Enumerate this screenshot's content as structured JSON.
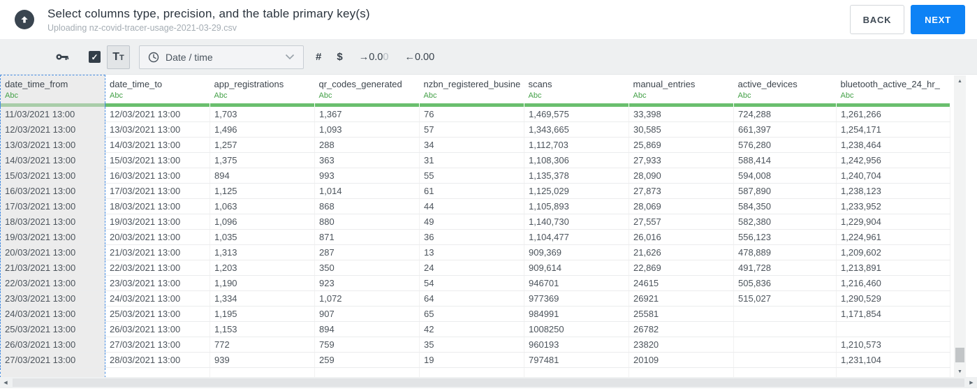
{
  "colors": {
    "accent_blue": "#0d82f5",
    "type_green": "#43a047",
    "selection_blue": "#4a8fe2",
    "selected_col_bg": "#ececec",
    "green_bar": "#6abf6e",
    "green_bar_selected": "#a9cda9"
  },
  "header": {
    "title": "Select columns type, precision, and the table primary key(s)",
    "subtitle": "Uploading nz-covid-tracer-usage-2021-03-29.csv",
    "back_label": "BACK",
    "next_label": "NEXT"
  },
  "toolbar": {
    "text_type_label": "Tt",
    "type_dropdown_value": "Date / time",
    "number_symbol": "#",
    "currency_symbol": "$",
    "precision_increase": {
      "main": "→0.0",
      "ghost": "0"
    },
    "precision_decrease": "←0.00"
  },
  "table": {
    "columns": [
      {
        "name": "date_time_from",
        "type": "Abc",
        "selected": true
      },
      {
        "name": "date_time_to",
        "type": "Abc"
      },
      {
        "name": "app_registrations",
        "type": "Abc"
      },
      {
        "name": "qr_codes_generated",
        "type": "Abc"
      },
      {
        "name": "nzbn_registered_busine",
        "type": "Abc"
      },
      {
        "name": "scans",
        "type": "Abc"
      },
      {
        "name": "manual_entries",
        "type": "Abc"
      },
      {
        "name": "active_devices",
        "type": "Abc"
      },
      {
        "name": "bluetooth_active_24_hr_",
        "type": "Abc"
      }
    ],
    "rows": [
      [
        "11/03/2021 13:00",
        "12/03/2021 13:00",
        "1,703",
        "1,367",
        "76",
        "1,469,575",
        "33,398",
        "724,288",
        "1,261,266"
      ],
      [
        "12/03/2021 13:00",
        "13/03/2021 13:00",
        "1,496",
        "1,093",
        "57",
        "1,343,665",
        "30,585",
        "661,397",
        "1,254,171"
      ],
      [
        "13/03/2021 13:00",
        "14/03/2021 13:00",
        "1,257",
        "288",
        "34",
        "1,112,703",
        "25,869",
        "576,280",
        "1,238,464"
      ],
      [
        "14/03/2021 13:00",
        "15/03/2021 13:00",
        "1,375",
        "363",
        "31",
        "1,108,306",
        "27,933",
        "588,414",
        "1,242,956"
      ],
      [
        "15/03/2021 13:00",
        "16/03/2021 13:00",
        "894",
        "993",
        "55",
        "1,135,378",
        "28,090",
        "594,008",
        "1,240,704"
      ],
      [
        "16/03/2021 13:00",
        "17/03/2021 13:00",
        "1,125",
        "1,014",
        "61",
        "1,125,029",
        "27,873",
        "587,890",
        "1,238,123"
      ],
      [
        "17/03/2021 13:00",
        "18/03/2021 13:00",
        "1,063",
        "868",
        "44",
        "1,105,893",
        "28,069",
        "584,350",
        "1,233,952"
      ],
      [
        "18/03/2021 13:00",
        "19/03/2021 13:00",
        "1,096",
        "880",
        "49",
        "1,140,730",
        "27,557",
        "582,380",
        "1,229,904"
      ],
      [
        "19/03/2021 13:00",
        "20/03/2021 13:00",
        "1,035",
        "871",
        "36",
        "1,104,477",
        "26,016",
        "556,123",
        "1,224,961"
      ],
      [
        "20/03/2021 13:00",
        "21/03/2021 13:00",
        "1,313",
        "287",
        "13",
        "909,369",
        "21,626",
        "478,889",
        "1,209,602"
      ],
      [
        "21/03/2021 13:00",
        "22/03/2021 13:00",
        "1,203",
        "350",
        "24",
        "909,614",
        "22,869",
        "491,728",
        "1,213,891"
      ],
      [
        "22/03/2021 13:00",
        "23/03/2021 13:00",
        "1,190",
        "923",
        "54",
        "946701",
        "24615",
        "505,836",
        "1,216,460"
      ],
      [
        "23/03/2021 13:00",
        "24/03/2021 13:00",
        "1,334",
        "1,072",
        "64",
        "977369",
        "26921",
        "515,027",
        "1,290,529"
      ],
      [
        "24/03/2021 13:00",
        "25/03/2021 13:00",
        "1,195",
        "907",
        "65",
        "984991",
        "25581",
        "",
        "1,171,854"
      ],
      [
        "25/03/2021 13:00",
        "26/03/2021 13:00",
        "1,153",
        "894",
        "42",
        "1008250",
        "26782",
        "",
        ""
      ],
      [
        "26/03/2021 13:00",
        "27/03/2021 13:00",
        "772",
        "759",
        "35",
        "960193",
        "23820",
        "",
        "1,210,573"
      ],
      [
        "27/03/2021 13:00",
        "28/03/2021 13:00",
        "939",
        "259",
        "19",
        "797481",
        "20109",
        "",
        "1,231,104"
      ]
    ]
  }
}
